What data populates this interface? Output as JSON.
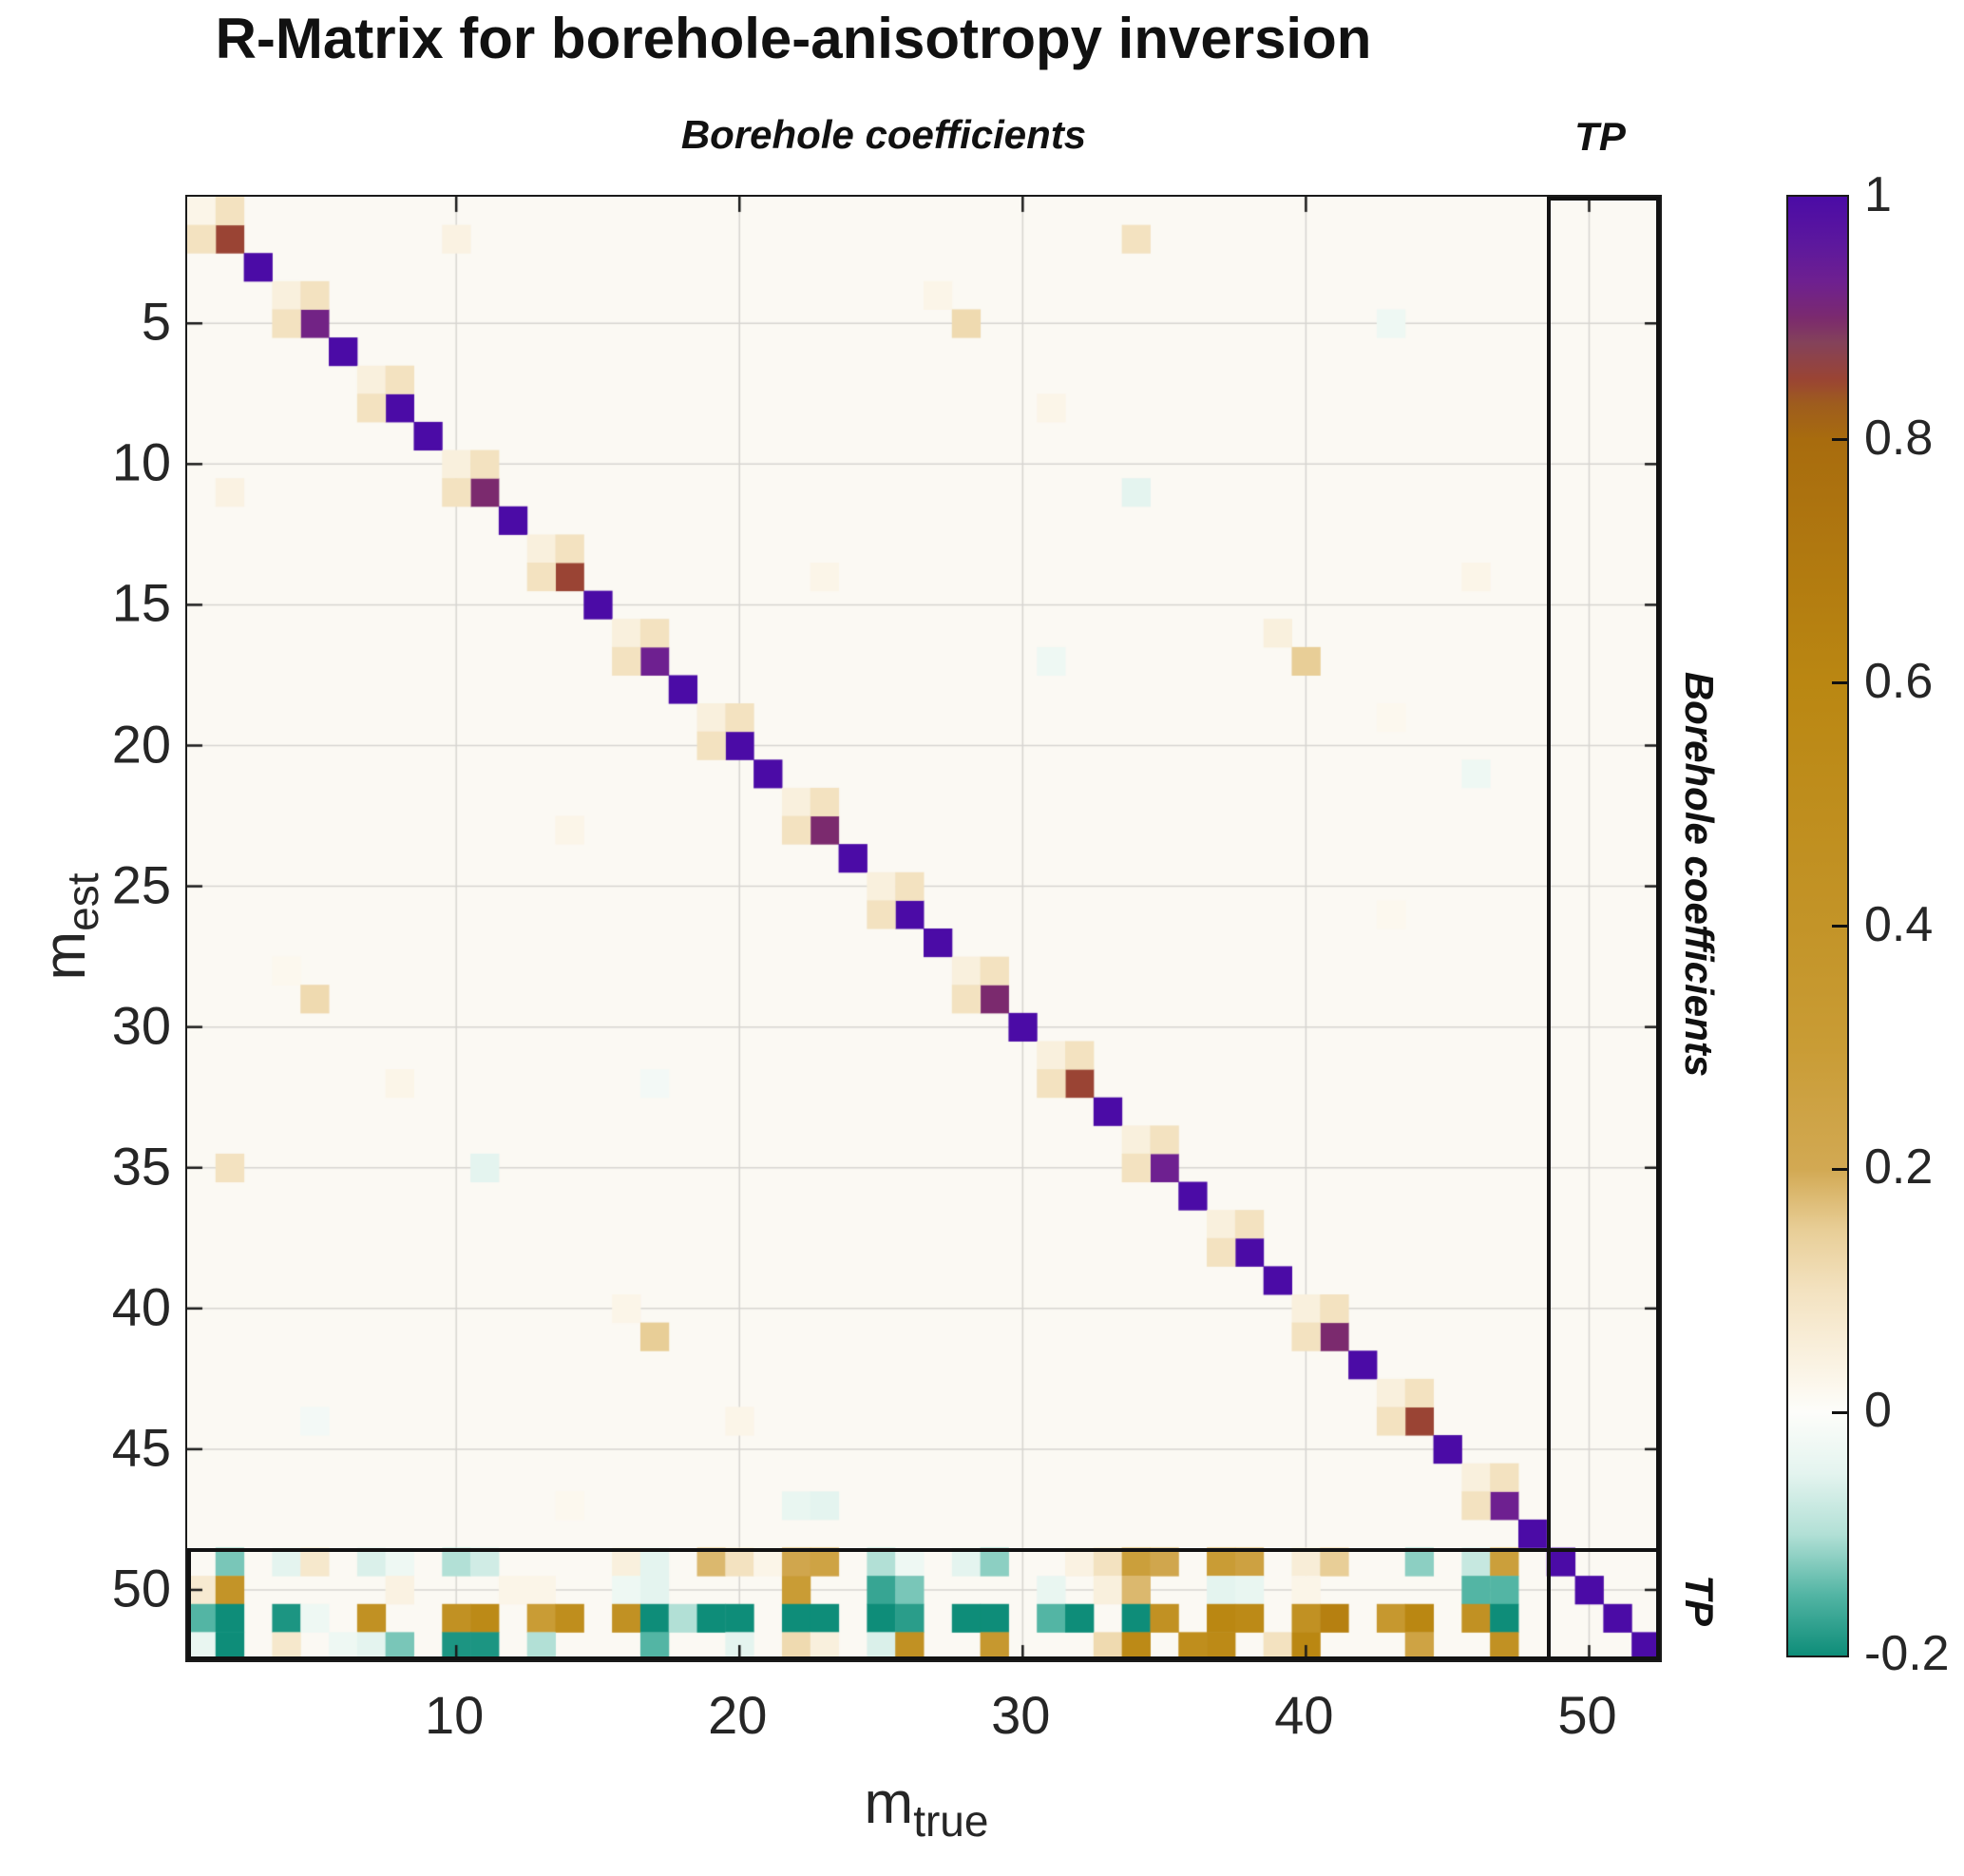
{
  "title": "R-Matrix for borehole-anisotropy inversion",
  "annotations": {
    "top_left": "Borehole coefficients",
    "top_right": "TP",
    "right_upper": "Borehole coefficients",
    "right_lower": "TP"
  },
  "axes": {
    "x_label": {
      "base": "m",
      "sub": "true"
    },
    "y_label": {
      "base": "m",
      "sub": "est"
    },
    "x_ticks": [
      10,
      20,
      30,
      40,
      50
    ],
    "y_ticks": [
      5,
      10,
      15,
      20,
      25,
      30,
      35,
      40,
      45,
      50
    ]
  },
  "colorbar": {
    "min": -0.2,
    "max": 1,
    "tick_values": [
      1,
      0.8,
      0.6,
      0.4,
      0.2,
      0,
      -0.2
    ],
    "tick_labels": [
      "1",
      "0.8",
      "0.6",
      "0.4",
      "0.2",
      "0",
      "-0.2"
    ]
  },
  "chart_data": {
    "type": "heatmap",
    "title": "R-Matrix for borehole-anisotropy inversion",
    "xlabel": "m_true",
    "ylabel": "m_est",
    "n": 52,
    "x_range": [
      1,
      52
    ],
    "y_range": [
      1,
      52
    ],
    "tp_start": 49,
    "grid": true,
    "background_value_color": "#fbf9f3",
    "diagonal": [
      0.03,
      0.85,
      1,
      0.05,
      0.92,
      1,
      0.05,
      1,
      1,
      0.05,
      0.9,
      1,
      0.05,
      0.85,
      1,
      0.05,
      0.93,
      1,
      0.05,
      1,
      1,
      0.05,
      0.9,
      1,
      0.05,
      1,
      1,
      0.05,
      0.9,
      1,
      0.05,
      0.85,
      1,
      0.05,
      0.93,
      1,
      0.05,
      1,
      1,
      0.05,
      0.9,
      1,
      0.05,
      0.85,
      1,
      0.05,
      0.93,
      1,
      1,
      1,
      1,
      1
    ],
    "off_diagonal_cells": [
      [
        1,
        2,
        0.1
      ],
      [
        2,
        1,
        0.1
      ],
      [
        4,
        5,
        0.1
      ],
      [
        5,
        4,
        0.1
      ],
      [
        7,
        8,
        0.1
      ],
      [
        8,
        7,
        0.1
      ],
      [
        10,
        11,
        0.1
      ],
      [
        11,
        10,
        0.1
      ],
      [
        13,
        14,
        0.1
      ],
      [
        14,
        13,
        0.1
      ],
      [
        16,
        17,
        0.1
      ],
      [
        17,
        16,
        0.1
      ],
      [
        19,
        20,
        0.1
      ],
      [
        20,
        19,
        0.1
      ],
      [
        22,
        23,
        0.1
      ],
      [
        23,
        22,
        0.1
      ],
      [
        25,
        26,
        0.1
      ],
      [
        26,
        25,
        0.1
      ],
      [
        28,
        29,
        0.1
      ],
      [
        29,
        28,
        0.1
      ],
      [
        31,
        32,
        0.1
      ],
      [
        32,
        31,
        0.1
      ],
      [
        34,
        35,
        0.1
      ],
      [
        35,
        34,
        0.1
      ],
      [
        37,
        38,
        0.1
      ],
      [
        38,
        37,
        0.1
      ],
      [
        40,
        41,
        0.1
      ],
      [
        41,
        40,
        0.1
      ],
      [
        43,
        44,
        0.1
      ],
      [
        44,
        43,
        0.1
      ],
      [
        46,
        47,
        0.1
      ],
      [
        47,
        46,
        0.1
      ],
      [
        2,
        10,
        0.04
      ],
      [
        2,
        34,
        0.1
      ],
      [
        4,
        27,
        0.03
      ],
      [
        5,
        28,
        0.12
      ],
      [
        5,
        43,
        -0.03
      ],
      [
        8,
        31,
        0.03
      ],
      [
        11,
        2,
        0.04
      ],
      [
        11,
        34,
        -0.05
      ],
      [
        14,
        23,
        0.03
      ],
      [
        14,
        46,
        0.03
      ],
      [
        16,
        39,
        0.05
      ],
      [
        17,
        31,
        -0.03
      ],
      [
        17,
        40,
        0.15
      ],
      [
        19,
        43,
        0.02
      ],
      [
        21,
        46,
        -0.03
      ],
      [
        23,
        14,
        0.03
      ],
      [
        26,
        43,
        0.02
      ],
      [
        28,
        4,
        0.02
      ],
      [
        29,
        5,
        0.12
      ],
      [
        32,
        8,
        0.03
      ],
      [
        32,
        17,
        -0.02
      ],
      [
        35,
        2,
        0.1
      ],
      [
        35,
        11,
        -0.05
      ],
      [
        40,
        16,
        0.03
      ],
      [
        41,
        17,
        0.15
      ],
      [
        44,
        5,
        -0.02
      ],
      [
        44,
        20,
        0.03
      ],
      [
        47,
        14,
        0.02
      ],
      [
        47,
        22,
        -0.04
      ],
      [
        47,
        23,
        -0.05
      ]
    ],
    "bottom_rows": {
      "49": [
        0,
        -0.13,
        0,
        -0.05,
        0.08,
        0,
        -0.06,
        -0.03,
        0,
        -0.1,
        -0.07,
        0,
        0,
        0,
        0,
        0.05,
        -0.05,
        0,
        0.18,
        0.1,
        0.03,
        0.22,
        0.25,
        0,
        -0.1,
        -0.03,
        0,
        -0.05,
        -0.12,
        0,
        0,
        0.04,
        0.1,
        0.28,
        0.22,
        0,
        0.3,
        0.26,
        0,
        0.06,
        0.15,
        0,
        0,
        -0.12,
        0,
        -0.08,
        0.28,
        0,
        1,
        0,
        0,
        0
      ],
      "50": [
        0.07,
        0.4,
        0,
        0,
        0,
        0,
        0,
        0.04,
        0,
        0,
        0,
        0.03,
        0.03,
        0,
        0,
        -0.03,
        -0.05,
        0,
        0,
        0,
        0,
        0.3,
        0,
        0,
        -0.17,
        -0.13,
        0,
        0,
        0,
        0,
        -0.04,
        0,
        0.05,
        0.18,
        0,
        0,
        -0.05,
        -0.04,
        0,
        0.03,
        0,
        0,
        0,
        0,
        0,
        -0.15,
        -0.15,
        0,
        0,
        1,
        0,
        0
      ],
      "51": [
        -0.15,
        -0.2,
        0,
        -0.19,
        -0.03,
        0,
        0.45,
        0,
        0,
        0.45,
        0.55,
        0,
        0.3,
        0.5,
        0,
        0.45,
        -0.2,
        -0.1,
        -0.2,
        -0.2,
        0,
        -0.2,
        -0.2,
        0,
        -0.2,
        -0.18,
        0,
        -0.2,
        -0.2,
        0,
        -0.15,
        -0.2,
        0,
        -0.2,
        0.45,
        0,
        0.6,
        0.55,
        0,
        0.45,
        0.65,
        0,
        0.35,
        0.6,
        0,
        0.45,
        -0.2,
        0,
        0,
        0,
        1,
        0
      ],
      "52": [
        -0.04,
        -0.2,
        0,
        0.08,
        0,
        -0.03,
        -0.05,
        -0.13,
        0,
        -0.19,
        -0.19,
        0,
        -0.1,
        0,
        0,
        0,
        -0.15,
        0,
        0,
        -0.05,
        0,
        0.12,
        0.05,
        0,
        -0.06,
        0.45,
        0,
        0,
        0.35,
        0,
        0,
        0,
        0.12,
        0.55,
        0,
        0.5,
        0.55,
        0,
        0.1,
        0.6,
        0,
        0,
        0,
        0.25,
        0,
        0,
        0.45,
        0,
        0,
        0,
        0,
        1
      ]
    },
    "colormap_stops": [
      [
        -0.2,
        "#0e8d79"
      ],
      [
        -0.15,
        "#53b5a4"
      ],
      [
        -0.1,
        "#b2e0d6"
      ],
      [
        -0.05,
        "#e4f4ef"
      ],
      [
        0,
        "#fdfdfa"
      ],
      [
        0.03,
        "#fbf5e8"
      ],
      [
        0.06,
        "#f8edd7"
      ],
      [
        0.1,
        "#f3e2c0"
      ],
      [
        0.15,
        "#e8ce97"
      ],
      [
        0.2,
        "#d2a953"
      ],
      [
        0.3,
        "#c99c35"
      ],
      [
        0.4,
        "#c39428"
      ],
      [
        0.6,
        "#ba8712"
      ],
      [
        0.8,
        "#a86c0e"
      ],
      [
        0.83,
        "#9e5c1e"
      ],
      [
        0.85,
        "#9a4434"
      ],
      [
        0.88,
        "#84425a"
      ],
      [
        0.9,
        "#7b2a6e"
      ],
      [
        0.93,
        "#6e2090"
      ],
      [
        0.96,
        "#5d189d"
      ],
      [
        1,
        "#4b0ba6"
      ]
    ]
  }
}
